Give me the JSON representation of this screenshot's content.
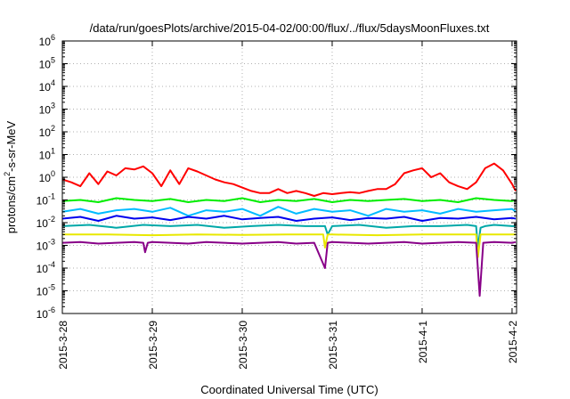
{
  "chart_data": {
    "type": "line",
    "title": "/data/run/goesPlots/archive/2015-04-02/00:00/flux/../flux/5daysMoonFluxes.txt",
    "xlabel": "Coordinated Universal Time (UTC)",
    "ylabel": {
      "prefix": "protons/cm",
      "sup": "2",
      "suffix": "-s-sr-MeV"
    },
    "y_scale": "log",
    "ylim": [
      1e-06,
      1000000.0
    ],
    "y_ticks": [
      {
        "value": 1e-06,
        "base": "10",
        "exp": "-6"
      },
      {
        "value": 1e-05,
        "base": "10",
        "exp": "-5"
      },
      {
        "value": 0.0001,
        "base": "10",
        "exp": "-4"
      },
      {
        "value": 0.001,
        "base": "10",
        "exp": "-3"
      },
      {
        "value": 0.01,
        "base": "10",
        "exp": "-2"
      },
      {
        "value": 0.1,
        "base": "10",
        "exp": "-1"
      },
      {
        "value": 1,
        "base": "10",
        "exp": "0"
      },
      {
        "value": 10.0,
        "base": "10",
        "exp": "1"
      },
      {
        "value": 100.0,
        "base": "10",
        "exp": "2"
      },
      {
        "value": 1000.0,
        "base": "10",
        "exp": "3"
      },
      {
        "value": 10000.0,
        "base": "10",
        "exp": "4"
      },
      {
        "value": 100000.0,
        "base": "10",
        "exp": "5"
      },
      {
        "value": 1000000.0,
        "base": "10",
        "exp": "6"
      }
    ],
    "x_unit": "days since 2015-03-28 00:00 UTC",
    "xlim": [
      0,
      5.05
    ],
    "x_ticks": [
      {
        "value": 0,
        "label": "2015-3-28"
      },
      {
        "value": 1,
        "label": "2015-3-29"
      },
      {
        "value": 2,
        "label": "2015-3-30"
      },
      {
        "value": 3,
        "label": "2015-3-31"
      },
      {
        "value": 4,
        "label": "2015-4-1"
      },
      {
        "value": 5,
        "label": "2015-4-2"
      }
    ],
    "grid": true,
    "legend": "none",
    "series": [
      {
        "color": "#ff0000",
        "x": [
          0,
          0.1,
          0.2,
          0.3,
          0.4,
          0.5,
          0.6,
          0.7,
          0.8,
          0.9,
          1.0,
          1.1,
          1.2,
          1.3,
          1.4,
          1.5,
          1.6,
          1.7,
          1.8,
          1.9,
          2.0,
          2.1,
          2.2,
          2.3,
          2.4,
          2.5,
          2.6,
          2.7,
          2.8,
          2.9,
          3.0,
          3.1,
          3.2,
          3.3,
          3.4,
          3.5,
          3.6,
          3.7,
          3.8,
          3.9,
          4.0,
          4.1,
          4.2,
          4.3,
          4.4,
          4.5,
          4.6,
          4.7,
          4.8,
          4.9,
          5.0,
          5.04
        ],
        "y": [
          0.8,
          0.6,
          0.4,
          1.5,
          0.5,
          1.8,
          1.2,
          2.5,
          2.2,
          3.0,
          1.5,
          0.4,
          2.0,
          0.5,
          2.5,
          1.8,
          1.2,
          0.8,
          0.6,
          0.5,
          0.35,
          0.25,
          0.2,
          0.2,
          0.3,
          0.2,
          0.25,
          0.2,
          0.15,
          0.2,
          0.18,
          0.2,
          0.22,
          0.2,
          0.25,
          0.3,
          0.3,
          0.5,
          1.5,
          2.0,
          2.5,
          1.0,
          1.5,
          0.6,
          0.4,
          0.3,
          0.6,
          2.5,
          4.0,
          2.0,
          0.5,
          0.25
        ]
      },
      {
        "color": "#00ee00",
        "x": [
          0,
          0.2,
          0.4,
          0.6,
          0.8,
          1.0,
          1.2,
          1.4,
          1.6,
          1.8,
          2.0,
          2.2,
          2.4,
          2.6,
          2.8,
          3.0,
          3.2,
          3.4,
          3.6,
          3.8,
          4.0,
          4.2,
          4.4,
          4.6,
          4.8,
          5.0,
          5.04
        ],
        "y": [
          0.09,
          0.1,
          0.08,
          0.12,
          0.1,
          0.09,
          0.11,
          0.08,
          0.1,
          0.09,
          0.12,
          0.08,
          0.1,
          0.09,
          0.11,
          0.08,
          0.1,
          0.09,
          0.1,
          0.11,
          0.09,
          0.1,
          0.08,
          0.12,
          0.1,
          0.09,
          0.1
        ]
      },
      {
        "color": "#00bbff",
        "x": [
          0,
          0.2,
          0.4,
          0.6,
          0.8,
          1.0,
          1.2,
          1.4,
          1.6,
          1.8,
          2.0,
          2.2,
          2.4,
          2.6,
          2.8,
          3.0,
          3.2,
          3.4,
          3.6,
          3.8,
          4.0,
          4.2,
          4.4,
          4.6,
          4.8,
          5.0,
          5.04
        ],
        "y": [
          0.03,
          0.04,
          0.025,
          0.035,
          0.04,
          0.03,
          0.045,
          0.02,
          0.035,
          0.03,
          0.04,
          0.02,
          0.05,
          0.025,
          0.04,
          0.03,
          0.035,
          0.02,
          0.04,
          0.03,
          0.035,
          0.025,
          0.04,
          0.03,
          0.035,
          0.04,
          0.03
        ]
      },
      {
        "color": "#0000ee",
        "x": [
          0,
          0.2,
          0.4,
          0.6,
          0.8,
          1.0,
          1.2,
          1.4,
          1.6,
          1.8,
          2.0,
          2.2,
          2.4,
          2.6,
          2.8,
          3.0,
          3.2,
          3.4,
          3.6,
          3.8,
          4.0,
          4.2,
          4.4,
          4.6,
          4.8,
          5.0,
          5.04
        ],
        "y": [
          0.015,
          0.018,
          0.012,
          0.02,
          0.015,
          0.017,
          0.013,
          0.018,
          0.015,
          0.02,
          0.014,
          0.016,
          0.018,
          0.012,
          0.015,
          0.017,
          0.013,
          0.016,
          0.015,
          0.018,
          0.012,
          0.016,
          0.015,
          0.018,
          0.014,
          0.016,
          0.015
        ]
      },
      {
        "color": "#00a8a8",
        "x": [
          0,
          0.3,
          0.6,
          0.9,
          1.2,
          1.5,
          1.8,
          2.1,
          2.4,
          2.7,
          2.92,
          2.95,
          3.0,
          3.3,
          3.6,
          3.9,
          4.2,
          4.5,
          4.6,
          4.62,
          4.65,
          4.7,
          4.8,
          5.0,
          5.04
        ],
        "y": [
          0.007,
          0.008,
          0.006,
          0.008,
          0.007,
          0.008,
          0.006,
          0.007,
          0.008,
          0.007,
          0.007,
          0.003,
          0.007,
          0.008,
          0.006,
          0.007,
          0.007,
          0.008,
          0.007,
          0.0008,
          0.006,
          0.007,
          0.008,
          0.007,
          0.007
        ]
      },
      {
        "color": "#e8e800",
        "x": [
          0,
          0.5,
          1.0,
          1.5,
          2.0,
          2.5,
          2.9,
          2.92,
          2.95,
          3.0,
          3.5,
          4.0,
          4.5,
          4.6,
          4.62,
          4.65,
          4.7,
          5.0,
          5.04
        ],
        "y": [
          0.003,
          0.003,
          0.0028,
          0.003,
          0.0029,
          0.003,
          0.003,
          0.0008,
          0.003,
          0.003,
          0.0028,
          0.003,
          0.003,
          0.003,
          0.0003,
          0.003,
          0.003,
          0.003,
          0.003
        ]
      },
      {
        "color": "#880088",
        "x": [
          0,
          0.2,
          0.4,
          0.6,
          0.8,
          0.9,
          0.92,
          0.95,
          1.0,
          1.2,
          1.4,
          1.6,
          1.8,
          2.0,
          2.2,
          2.4,
          2.6,
          2.8,
          2.92,
          2.95,
          3.0,
          3.2,
          3.4,
          3.6,
          3.8,
          4.0,
          4.2,
          4.4,
          4.6,
          4.64,
          4.68,
          4.8,
          5.0,
          5.04
        ],
        "y": [
          0.0013,
          0.0014,
          0.0012,
          0.0013,
          0.0014,
          0.0013,
          0.0005,
          0.0013,
          0.0014,
          0.0013,
          0.0012,
          0.0014,
          0.0013,
          0.0012,
          0.0013,
          0.0014,
          0.0012,
          0.0013,
          0.0001,
          0.0013,
          0.0014,
          0.0013,
          0.0012,
          0.0013,
          0.0014,
          0.0012,
          0.0013,
          0.0014,
          0.0013,
          6e-06,
          0.0013,
          0.0014,
          0.0013,
          0.0014
        ]
      }
    ]
  }
}
